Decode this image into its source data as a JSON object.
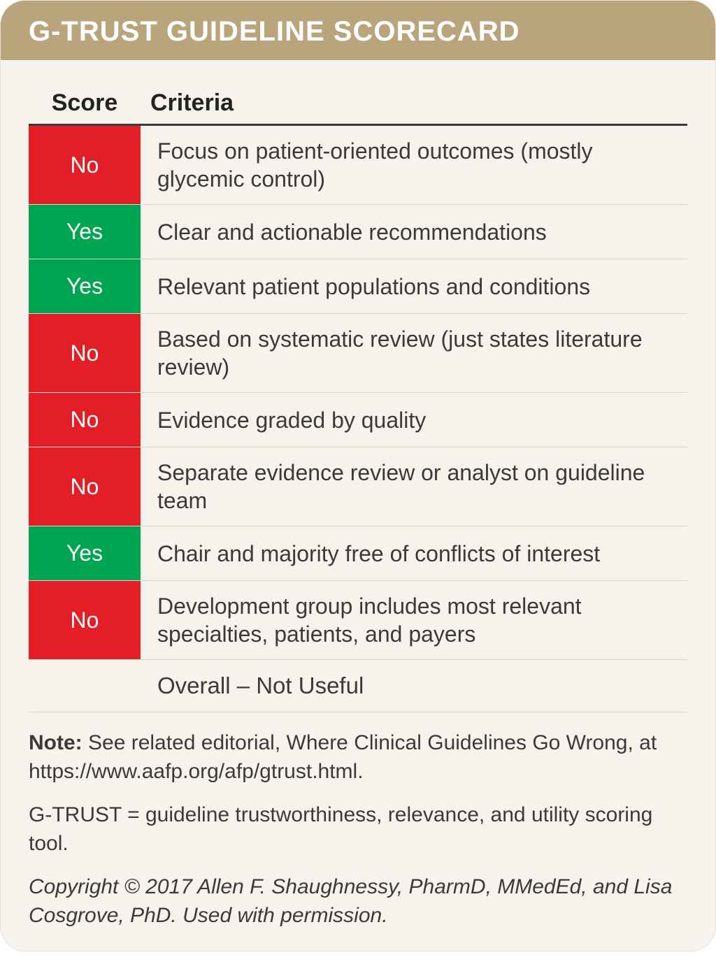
{
  "colors": {
    "header_bg": "#b9a47c",
    "header_text": "#ffffff",
    "card_bg": "#f6f3ed",
    "no_bg": "#e41e26",
    "yes_bg": "#00a551",
    "score_text": "#ffffff",
    "body_text": "#3d3a36",
    "rule": "#d8d4cb",
    "thick_rule": "#3a3a3a"
  },
  "header": {
    "title": "G-TRUST GUIDELINE SCORECARD"
  },
  "table": {
    "columns": {
      "score": "Score",
      "criteria": "Criteria"
    },
    "rows": [
      {
        "score": "No",
        "score_kind": "no",
        "criteria": "Focus on patient-oriented outcomes (mostly glycemic control)"
      },
      {
        "score": "Yes",
        "score_kind": "yes",
        "criteria": "Clear and actionable recommendations"
      },
      {
        "score": "Yes",
        "score_kind": "yes",
        "criteria": "Relevant patient populations and conditions"
      },
      {
        "score": "No",
        "score_kind": "no",
        "criteria": "Based on systematic review (just states literature review)"
      },
      {
        "score": "No",
        "score_kind": "no",
        "criteria": "Evidence graded by quality"
      },
      {
        "score": "No",
        "score_kind": "no",
        "criteria": "Separate evidence review or analyst on guideline team"
      },
      {
        "score": "Yes",
        "score_kind": "yes",
        "criteria": "Chair and majority free of conflicts of interest"
      },
      {
        "score": "No",
        "score_kind": "no",
        "criteria": "Development group includes most relevant specialties, patients, and payers"
      }
    ],
    "overall": "Overall – Not Useful"
  },
  "note": {
    "label": "Note:",
    "text": "See related editorial, Where Clinical Guidelines Go Wrong, at https://www.aafp.org/afp/gtrust.html."
  },
  "definition": "G-TRUST = guideline trustworthiness, relevance, and utility scoring tool.",
  "copyright": "Copyright © 2017 Allen F. Shaughnessy, PharmD, MMedEd, and Lisa Cosgrove, PhD. Used with permission."
}
